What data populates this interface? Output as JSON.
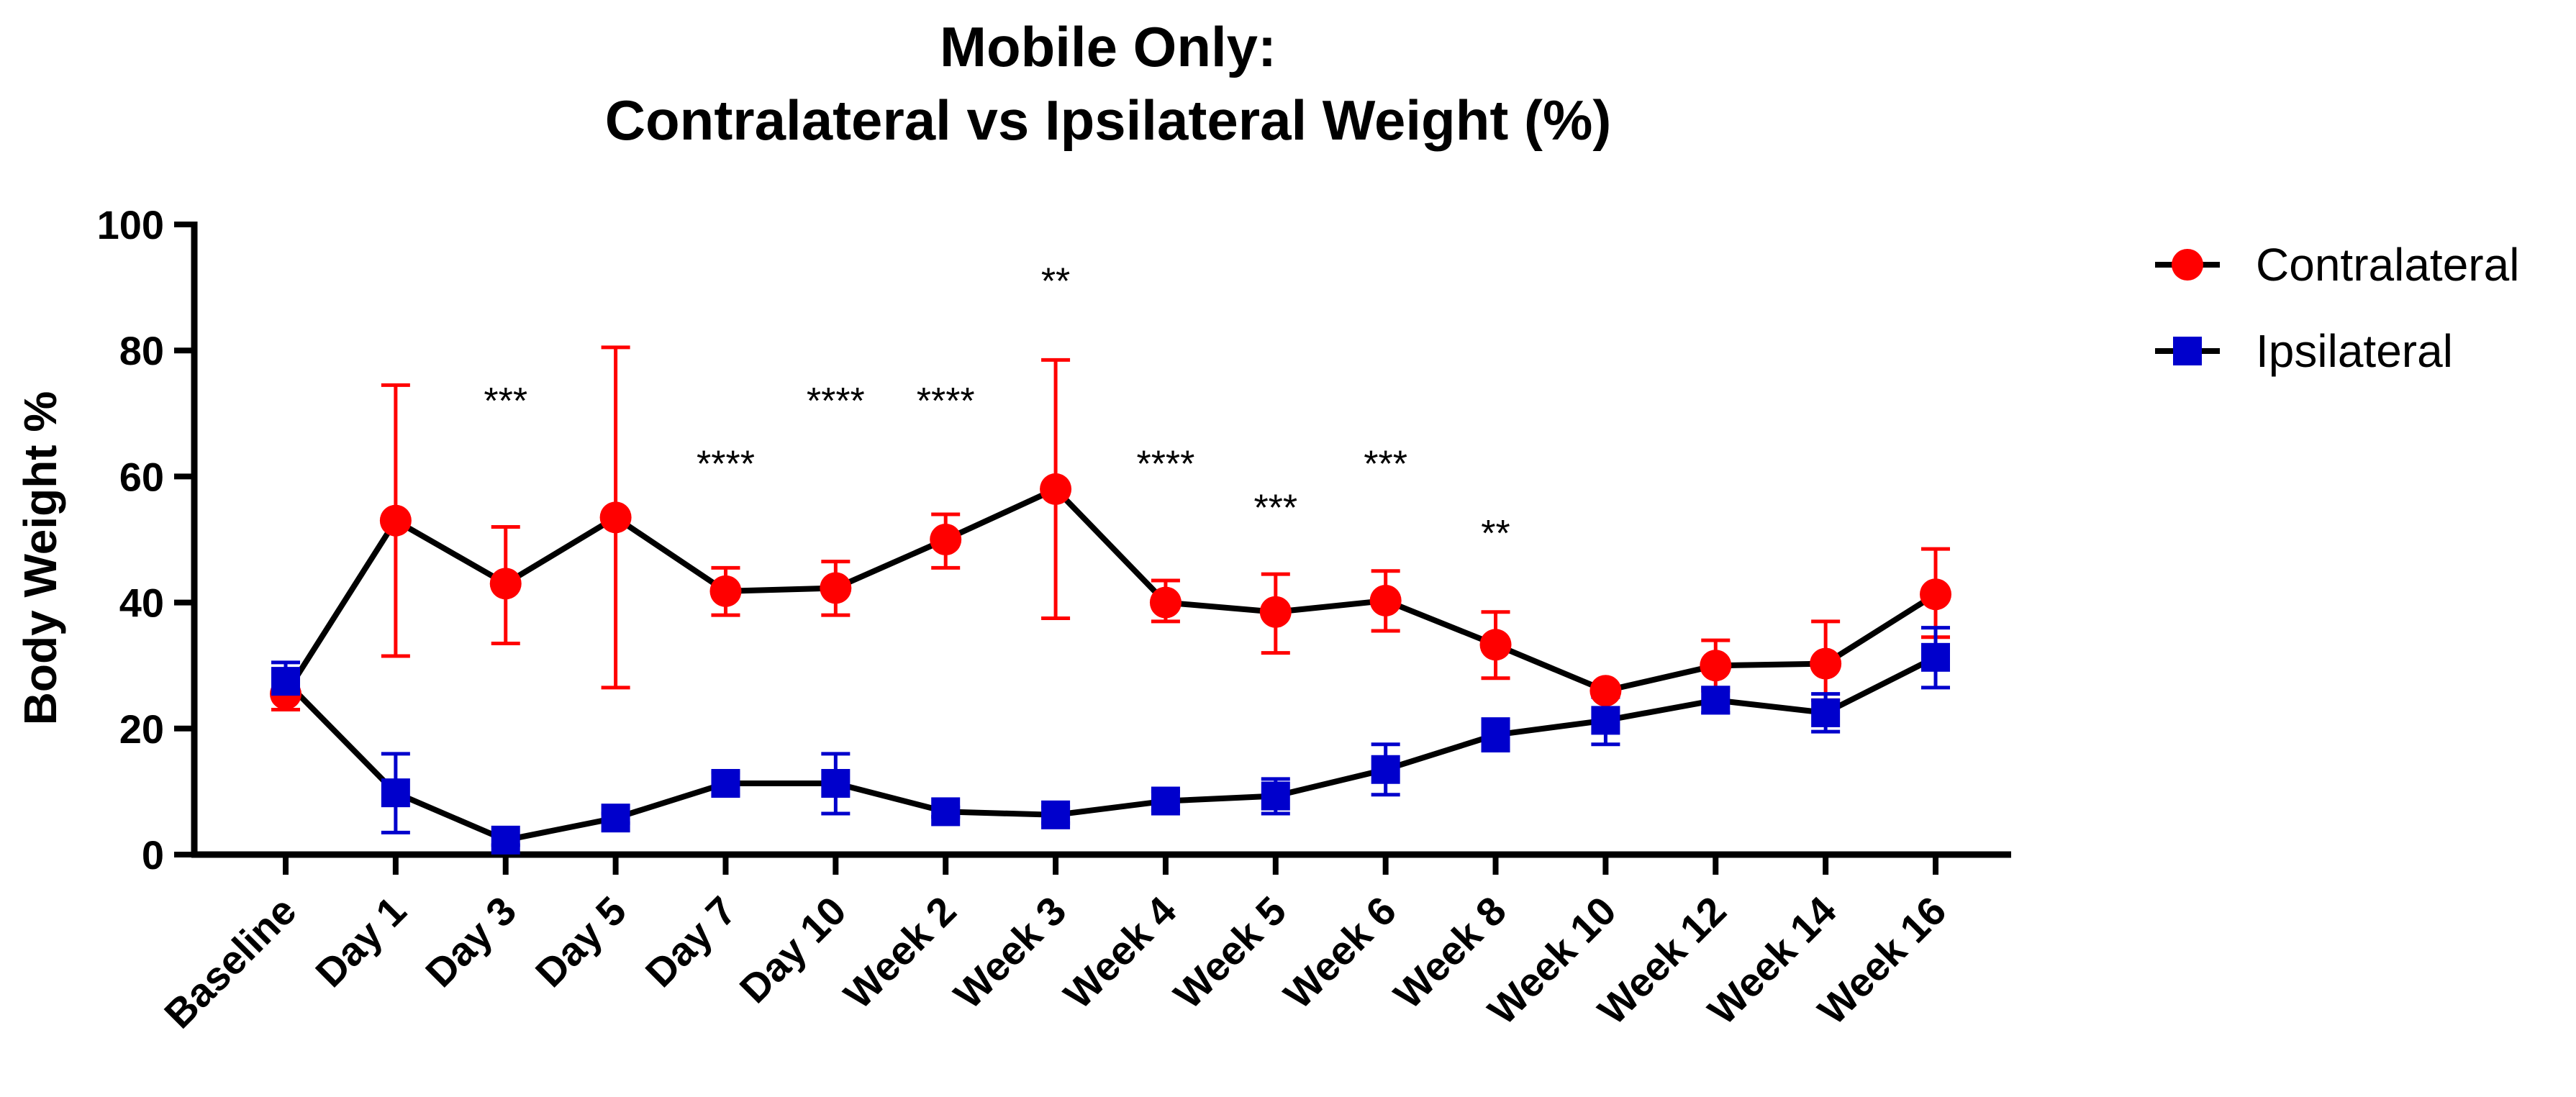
{
  "chart_data": {
    "type": "line",
    "title": [
      "Mobile Only:",
      "Contralateral vs Ipsilateral Weight (%)"
    ],
    "xlabel": "",
    "ylabel": "Body Weight %",
    "ylim": [
      0,
      100
    ],
    "yticks": [
      "0",
      "20",
      "40",
      "60",
      "80",
      "100"
    ],
    "categories": [
      "Baseline",
      "Day 1",
      "Day 3",
      "Day 5",
      "Day 7",
      "Day 10",
      "Week 2",
      "Week 3",
      "Week 4",
      "Week 5",
      "Week 6",
      "Week 8",
      "Week 10",
      "Week 12",
      "Week 14",
      "Week 16"
    ],
    "series": [
      {
        "name": "Contralateral",
        "color": "#ff0000",
        "marker": "circle",
        "values": [
          25.5,
          53,
          43,
          53.5,
          41.8,
          42.3,
          50,
          58,
          40,
          38.5,
          40.3,
          33.3,
          26,
          30,
          30.3,
          41.3
        ],
        "err_low": [
          23,
          31.5,
          33.5,
          26.5,
          38,
          38,
          45.5,
          37.5,
          37,
          32,
          35.5,
          28,
          26,
          26,
          24.5,
          34.5
        ],
        "err_high": [
          28,
          74.5,
          52,
          80.5,
          45.5,
          46.5,
          54,
          78.5,
          43.5,
          44.5,
          45,
          38.5,
          26,
          34,
          37,
          48.5
        ]
      },
      {
        "name": "Ipsilateral",
        "color": "#0000cc",
        "marker": "square",
        "values": [
          27.5,
          9.8,
          2.3,
          5.8,
          11.3,
          11.3,
          6.8,
          6.3,
          8.5,
          9.3,
          13.5,
          19,
          21.3,
          24.5,
          22.5,
          31.3
        ],
        "err_low": [
          25,
          3.5,
          1.5,
          5,
          9.5,
          6.5,
          6,
          5,
          7,
          6.5,
          9.5,
          16.5,
          17.5,
          22.5,
          19.5,
          26.5
        ],
        "err_high": [
          30.5,
          16,
          3,
          6.5,
          13,
          16,
          7.5,
          7.5,
          10,
          12,
          17.5,
          21.5,
          25,
          26.5,
          25.5,
          36
        ]
      }
    ],
    "annotations": [
      {
        "category": "Day 3",
        "text": "***",
        "y": 70
      },
      {
        "category": "Day 7",
        "text": "****",
        "y": 60
      },
      {
        "category": "Day 10",
        "text": "****",
        "y": 70
      },
      {
        "category": "Week 2",
        "text": "****",
        "y": 70
      },
      {
        "category": "Week 3",
        "text": "**",
        "y": 89
      },
      {
        "category": "Week 4",
        "text": "****",
        "y": 60
      },
      {
        "category": "Week 5",
        "text": "***",
        "y": 53
      },
      {
        "category": "Week 6",
        "text": "***",
        "y": 60
      },
      {
        "category": "Week 8",
        "text": "**",
        "y": 49
      }
    ],
    "legend_position": "top-right"
  }
}
